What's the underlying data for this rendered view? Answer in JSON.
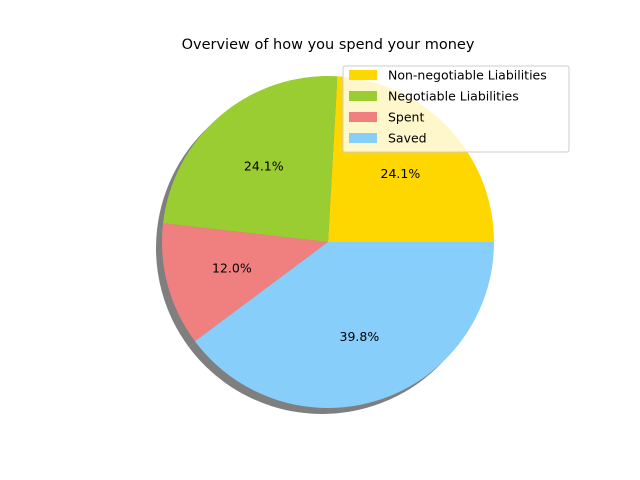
{
  "chart_data": {
    "type": "pie",
    "title": "Overview of how you spend your money",
    "categories": [
      "Non-negotiable Liabilities",
      "Negotiable Liabilities",
      "Spent",
      "Saved"
    ],
    "values": [
      24.1,
      24.1,
      12.0,
      39.8
    ],
    "percent_labels": [
      "24.1%",
      "24.1%",
      "12.0%",
      "39.8%"
    ],
    "colors": [
      "#ffd700",
      "#9acd32",
      "#f08080",
      "#87cefa"
    ],
    "start_angle_deg": 0,
    "direction": "counterclockwise",
    "shadow": true,
    "legend_position": "upper right"
  }
}
